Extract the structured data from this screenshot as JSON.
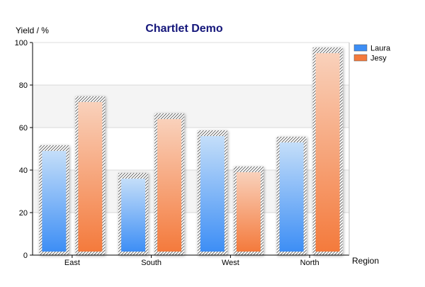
{
  "chart_data": {
    "type": "bar",
    "title": "Chartlet Demo",
    "xlabel": "Region",
    "ylabel": "Yield / %",
    "categories": [
      "East",
      "South",
      "West",
      "North"
    ],
    "ylim": [
      0,
      100
    ],
    "yticks": [
      0,
      20,
      40,
      60,
      80,
      100
    ],
    "grid": true,
    "legend_position": "top-right",
    "series": [
      {
        "name": "Laura",
        "values": [
          50,
          37,
          57,
          54
        ],
        "color": "#3d8ef5",
        "color_light": "#c4def9"
      },
      {
        "name": "Jesy",
        "values": [
          73,
          65,
          40,
          96
        ],
        "color": "#f47a3c",
        "color_light": "#f9d1bb"
      }
    ]
  },
  "colors": {
    "title": "#14167a",
    "axis": "#000000",
    "gridline": "#d9d9d9",
    "band": "#f4f4f4",
    "hatch": "#444444"
  }
}
